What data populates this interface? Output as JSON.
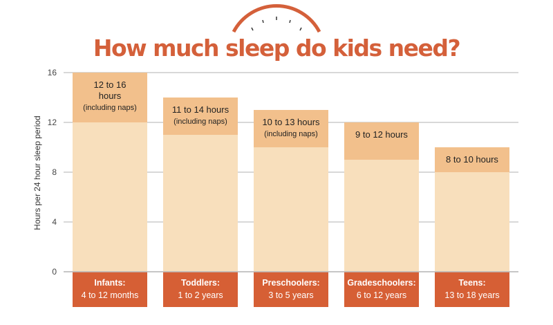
{
  "chart_data": {
    "type": "bar",
    "title": "How much sleep do kids need?",
    "ylabel": "Hours per 24 hour sleep period",
    "xlabel": "",
    "ylim": [
      0,
      16
    ],
    "yticks": [
      "0",
      "4",
      "8",
      "12",
      "16"
    ],
    "grid": true,
    "categories": [
      {
        "name": "Infants:",
        "ages": "4 to 12 months",
        "min": 12,
        "max": 16,
        "label": [
          "12 to 16",
          "hours",
          "(including naps)"
        ]
      },
      {
        "name": "Toddlers:",
        "ages": "1 to 2 years",
        "min": 11,
        "max": 14,
        "label": [
          "11 to 14 hours",
          "(including naps)"
        ]
      },
      {
        "name": "Preschoolers:",
        "ages": "3 to 5 years",
        "min": 10,
        "max": 13,
        "label": [
          "10 to 13 hours",
          "(including naps)"
        ]
      },
      {
        "name": "Gradeschoolers:",
        "ages": "6 to 12 years",
        "min": 9,
        "max": 12,
        "label": [
          "9 to 12 hours"
        ]
      },
      {
        "name": "Teens:",
        "ages": "13 to 18 years",
        "min": 8,
        "max": 10,
        "label": [
          "8 to 10 hours"
        ]
      }
    ]
  },
  "colors": {
    "title": "#d4603a",
    "base": "#f8dfbc",
    "range": "#f2c08c",
    "label_bg": "#d65f35",
    "grid": "#cccccc",
    "clock": "#d4603a"
  }
}
